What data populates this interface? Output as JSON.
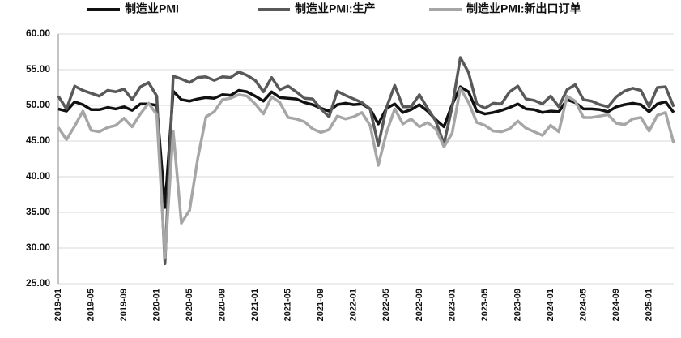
{
  "chart_data": {
    "type": "line",
    "categories": [
      "2019-01",
      null,
      null,
      null,
      "2019-05",
      null,
      null,
      null,
      "2019-09",
      null,
      null,
      null,
      "2020-01",
      null,
      null,
      null,
      "2020-05",
      null,
      null,
      null,
      "2020-09",
      null,
      null,
      null,
      "2021-01",
      null,
      null,
      null,
      "2021-05",
      null,
      null,
      null,
      "2021-09",
      null,
      null,
      null,
      "2022-01",
      null,
      null,
      null,
      "2022-05",
      null,
      null,
      null,
      "2022-09",
      null,
      null,
      null,
      "2023-01",
      null,
      null,
      null,
      "2023-05",
      null,
      null,
      null,
      "2023-09",
      null,
      null,
      null,
      "2024-01",
      null,
      null,
      null,
      "2024-05",
      null,
      null,
      null,
      "2024-09",
      null,
      null,
      null,
      "2025-01",
      null,
      null,
      null
    ],
    "series": [
      {
        "name": "制造业PMI",
        "color": "#111111",
        "values": [
          49.5,
          49.2,
          50.5,
          50.1,
          49.4,
          49.4,
          49.7,
          49.5,
          49.8,
          49.3,
          50.2,
          50.2,
          50.0,
          35.7,
          52.0,
          50.8,
          50.6,
          50.9,
          51.1,
          51.0,
          51.5,
          51.4,
          52.1,
          51.9,
          51.3,
          50.6,
          51.9,
          51.1,
          51.0,
          50.9,
          50.4,
          50.1,
          49.6,
          49.2,
          50.1,
          50.3,
          50.1,
          50.2,
          49.5,
          47.4,
          49.6,
          50.2,
          49.0,
          49.4,
          50.1,
          49.2,
          48.0,
          47.0,
          50.1,
          52.6,
          51.9,
          49.2,
          48.8,
          49.0,
          49.3,
          49.7,
          50.2,
          49.5,
          49.4,
          49.0,
          49.2,
          49.1,
          50.8,
          50.4,
          49.5,
          49.5,
          49.4,
          49.1,
          49.8,
          50.1,
          50.3,
          50.1,
          49.1,
          50.2,
          50.5,
          49.0
        ]
      },
      {
        "name": "制造业PMI:生产",
        "color": "#595959",
        "values": [
          51.3,
          49.5,
          52.7,
          52.1,
          51.7,
          51.3,
          52.1,
          51.9,
          52.3,
          50.8,
          52.6,
          53.2,
          51.3,
          27.8,
          54.1,
          53.7,
          53.2,
          53.9,
          54.0,
          53.5,
          54.0,
          53.9,
          54.7,
          54.2,
          53.5,
          51.9,
          53.9,
          52.2,
          52.7,
          51.9,
          51.0,
          50.9,
          49.5,
          48.4,
          52.0,
          51.4,
          50.9,
          50.4,
          49.5,
          44.4,
          49.7,
          52.8,
          49.8,
          49.8,
          51.5,
          49.6,
          47.8,
          44.6,
          49.8,
          56.7,
          54.6,
          50.2,
          49.6,
          50.3,
          50.2,
          51.9,
          52.7,
          50.9,
          50.7,
          50.2,
          51.3,
          49.8,
          52.2,
          52.9,
          50.8,
          50.6,
          50.1,
          49.8,
          51.2,
          52.0,
          52.4,
          52.1,
          49.8,
          52.5,
          52.6,
          49.8
        ]
      },
      {
        "name": "制造业PMI:新出口订单",
        "color": "#a6a6a6",
        "values": [
          46.9,
          45.2,
          47.1,
          49.2,
          46.5,
          46.3,
          46.9,
          47.2,
          48.2,
          47.0,
          48.8,
          50.3,
          48.7,
          28.7,
          46.4,
          33.5,
          35.3,
          42.6,
          48.4,
          49.1,
          50.8,
          51.0,
          51.5,
          51.3,
          50.2,
          48.8,
          51.2,
          50.4,
          48.3,
          48.1,
          47.7,
          46.7,
          46.2,
          46.6,
          48.5,
          48.1,
          48.4,
          49.0,
          47.2,
          41.6,
          46.2,
          49.5,
          47.4,
          48.1,
          47.0,
          47.6,
          46.7,
          44.2,
          46.1,
          52.4,
          50.4,
          47.6,
          47.2,
          46.4,
          46.3,
          46.7,
          47.8,
          46.8,
          46.3,
          45.8,
          47.2,
          46.3,
          51.3,
          50.6,
          48.3,
          48.3,
          48.5,
          48.7,
          47.5,
          47.3,
          48.1,
          48.3,
          46.4,
          48.6,
          49.0,
          44.7
        ]
      }
    ],
    "ylim": [
      25,
      60
    ],
    "yticks": [
      {
        "value": 25,
        "label": "25.00"
      },
      {
        "value": 30,
        "label": "30.00"
      },
      {
        "value": 35,
        "label": "35.00"
      },
      {
        "value": 40,
        "label": "40.00"
      },
      {
        "value": 45,
        "label": "45.00"
      },
      {
        "value": 50,
        "label": "50.00"
      },
      {
        "value": 55,
        "label": "55.00"
      },
      {
        "value": 60,
        "label": "60.00"
      }
    ],
    "grid": true,
    "legend": "top"
  }
}
